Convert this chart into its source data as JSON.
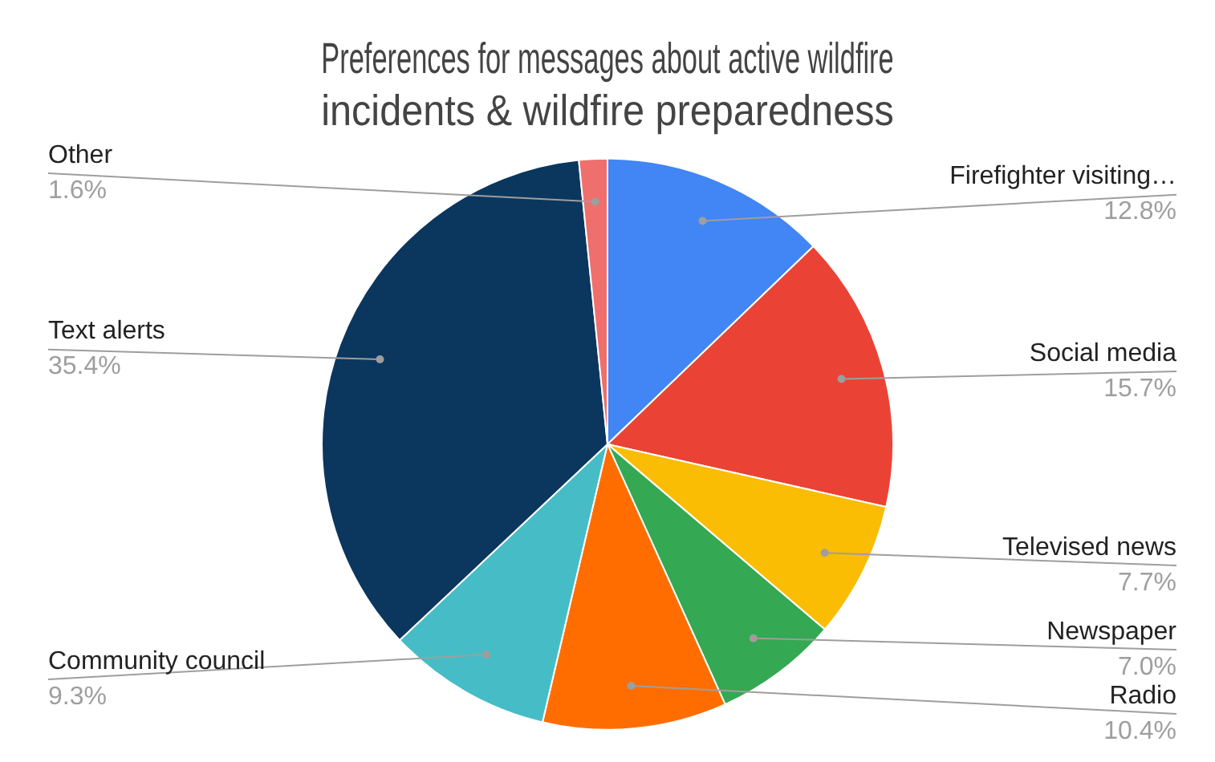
{
  "chart_data": {
    "type": "pie",
    "title": "Preferences for messages about active wildfire incidents & wildfire preparedness",
    "categories": [
      "Firefighter visiting…",
      "Social media",
      "Televised news",
      "Newspaper",
      "Radio",
      "Community council",
      "Text alerts",
      "Other"
    ],
    "values": [
      12.8,
      15.7,
      7.7,
      7.0,
      10.4,
      9.3,
      35.4,
      1.6
    ],
    "value_labels": [
      "12.8%",
      "15.7%",
      "7.7%",
      "7.0%",
      "10.4%",
      "9.3%",
      "35.4%",
      "1.6%"
    ],
    "colors": [
      "#4285f4",
      "#ea4335",
      "#fbbc04",
      "#34a853",
      "#ff6d01",
      "#46bdc6",
      "#0b365e",
      "#ef6f6c"
    ],
    "legend": false
  }
}
